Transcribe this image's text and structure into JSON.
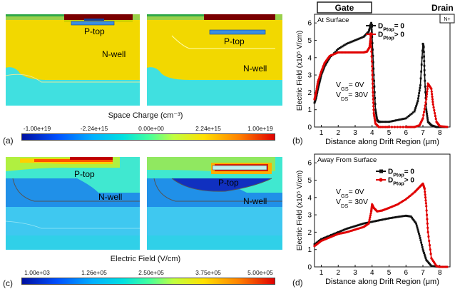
{
  "panels": {
    "a": "(a)",
    "b": "(b)",
    "c": "(c)",
    "d": "(d)"
  },
  "sim_labels": {
    "ptop": "P-top",
    "nwell": "N-well"
  },
  "colorbars": {
    "space_charge": {
      "title": "Space Charge (cm⁻³)",
      "ticks": [
        "-1.00e+19",
        "-2.24e+15",
        "0.00e+00",
        "2.24e+15",
        "1.00e+19"
      ]
    },
    "efield": {
      "title": "Electric Field (V/cm)",
      "ticks": [
        "1.00e+03",
        "1.26e+05",
        "2.50e+05",
        "3.75e+05",
        "5.00e+05"
      ]
    }
  },
  "colors": {
    "black_series": "#111111",
    "red_series": "#e00000",
    "yellow": "#f2d800",
    "cyan": "#40e0e0",
    "dark_red": "#7a0000",
    "deep_blue": "#0033c0"
  },
  "chart_data": [
    {
      "type": "line",
      "panel": "b",
      "annotation": "At Surface",
      "header_boxes": [
        "Gate",
        "Drain",
        "N+"
      ],
      "bias_text": [
        "VGS= 0V",
        "VDS= 30V"
      ],
      "xlabel": "Distance along Drift Region (μm)",
      "ylabel": "Electric Field (x10⁵ V/cm)",
      "xlim": [
        0.6,
        8.6
      ],
      "ylim": [
        0,
        6.5
      ],
      "xticks": [
        1,
        2,
        3,
        4,
        5,
        6,
        7,
        8
      ],
      "yticks": [
        0,
        1,
        2,
        3,
        4,
        5,
        6
      ],
      "legend_placement": "top-right",
      "series": [
        {
          "name": "DPtop= 0",
          "color": "#111111",
          "x": [
            0.6,
            0.7,
            0.8,
            0.9,
            1.0,
            1.2,
            1.5,
            2.0,
            2.5,
            3.0,
            3.5,
            3.8,
            3.95,
            4.0,
            4.1,
            4.2,
            4.3,
            4.4,
            4.5,
            5.0,
            5.5,
            6.0,
            6.5,
            6.7,
            6.85,
            7.0,
            7.05,
            7.1,
            7.2,
            7.3,
            7.5,
            7.8,
            8.0,
            8.5
          ],
          "y": [
            1.4,
            1.7,
            2.2,
            2.6,
            3.0,
            3.5,
            4.0,
            4.5,
            4.8,
            5.0,
            5.2,
            5.5,
            6.0,
            5.2,
            3.0,
            1.0,
            0.4,
            0.3,
            0.3,
            0.3,
            0.4,
            0.5,
            0.9,
            1.5,
            2.4,
            4.8,
            4.6,
            3.0,
            1.0,
            0.3,
            0.1,
            0.0,
            0.0,
            0.0
          ]
        },
        {
          "name": "DPtop> 0",
          "color": "#e00000",
          "x": [
            0.6,
            0.7,
            0.8,
            1.0,
            1.2,
            1.5,
            2.0,
            2.5,
            3.0,
            3.5,
            3.7,
            3.85,
            3.92,
            4.0,
            4.05,
            4.1,
            4.2,
            4.4,
            5.0,
            6.0,
            6.5,
            6.8,
            7.0,
            7.2,
            7.3,
            7.5,
            7.6,
            7.8,
            8.0,
            8.5
          ],
          "y": [
            1.6,
            2.0,
            2.6,
            3.2,
            3.7,
            4.1,
            4.3,
            4.3,
            4.3,
            4.3,
            4.35,
            4.6,
            5.2,
            3.5,
            2.0,
            0.8,
            0.2,
            0.0,
            0.0,
            0.0,
            0.0,
            0.1,
            0.5,
            1.6,
            2.5,
            2.2,
            1.3,
            0.3,
            0.05,
            0.0
          ]
        }
      ]
    },
    {
      "type": "line",
      "panel": "d",
      "annotation": "Away From Surface",
      "bias_text": [
        "VGS= 0V",
        "VDS= 30V"
      ],
      "xlabel": "Distance along Drift Region (μm)",
      "ylabel": "Electric Field (x10⁵ V/cm)",
      "xlim": [
        0.6,
        8.6
      ],
      "ylim": [
        0,
        6.5
      ],
      "xticks": [
        1,
        2,
        3,
        4,
        5,
        6,
        7,
        8
      ],
      "yticks": [
        0,
        1,
        2,
        3,
        4,
        5,
        6
      ],
      "legend_placement": "top-right",
      "series": [
        {
          "name": "DPtop= 0",
          "color": "#111111",
          "x": [
            0.6,
            1.0,
            1.5,
            2.0,
            2.5,
            3.0,
            3.5,
            4.0,
            4.5,
            5.0,
            5.5,
            6.0,
            6.3,
            6.6,
            6.8,
            7.0,
            7.2,
            7.5,
            8.0,
            8.5
          ],
          "y": [
            1.3,
            1.6,
            1.8,
            2.0,
            2.2,
            2.35,
            2.5,
            2.6,
            2.7,
            2.8,
            2.88,
            2.95,
            2.9,
            2.5,
            1.8,
            1.0,
            0.4,
            0.05,
            0.0,
            0.0
          ],
          "_": "—"
        },
        {
          "name": "DPtop> 0",
          "color": "#e00000",
          "x": [
            0.6,
            1.0,
            1.5,
            2.0,
            2.5,
            3.0,
            3.5,
            3.8,
            3.95,
            4.0,
            4.1,
            4.3,
            4.6,
            5.0,
            5.5,
            6.0,
            6.5,
            6.8,
            7.0,
            7.1,
            7.2,
            7.3,
            7.5,
            7.8,
            8.0,
            8.5
          ],
          "y": [
            1.2,
            1.5,
            1.7,
            1.9,
            2.0,
            2.15,
            2.3,
            2.5,
            3.2,
            3.6,
            3.4,
            3.2,
            3.25,
            3.4,
            3.6,
            3.9,
            4.3,
            4.6,
            4.8,
            4.5,
            3.5,
            2.0,
            0.5,
            0.05,
            0.0,
            0.0
          ]
        }
      ]
    }
  ]
}
